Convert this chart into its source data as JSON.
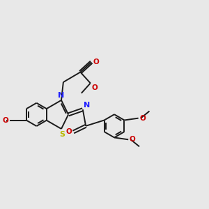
{
  "bg_color": "#e8e8e8",
  "bond_color": "#1a1a1a",
  "n_color": "#2020ff",
  "s_color": "#b8b800",
  "o_color": "#cc0000",
  "lw": 1.4,
  "fs": 7.0,
  "xlim": [
    -1.5,
    8.5
  ],
  "ylim": [
    -2.5,
    3.5
  ],
  "figsize": [
    3.0,
    3.0
  ],
  "dpi": 100
}
